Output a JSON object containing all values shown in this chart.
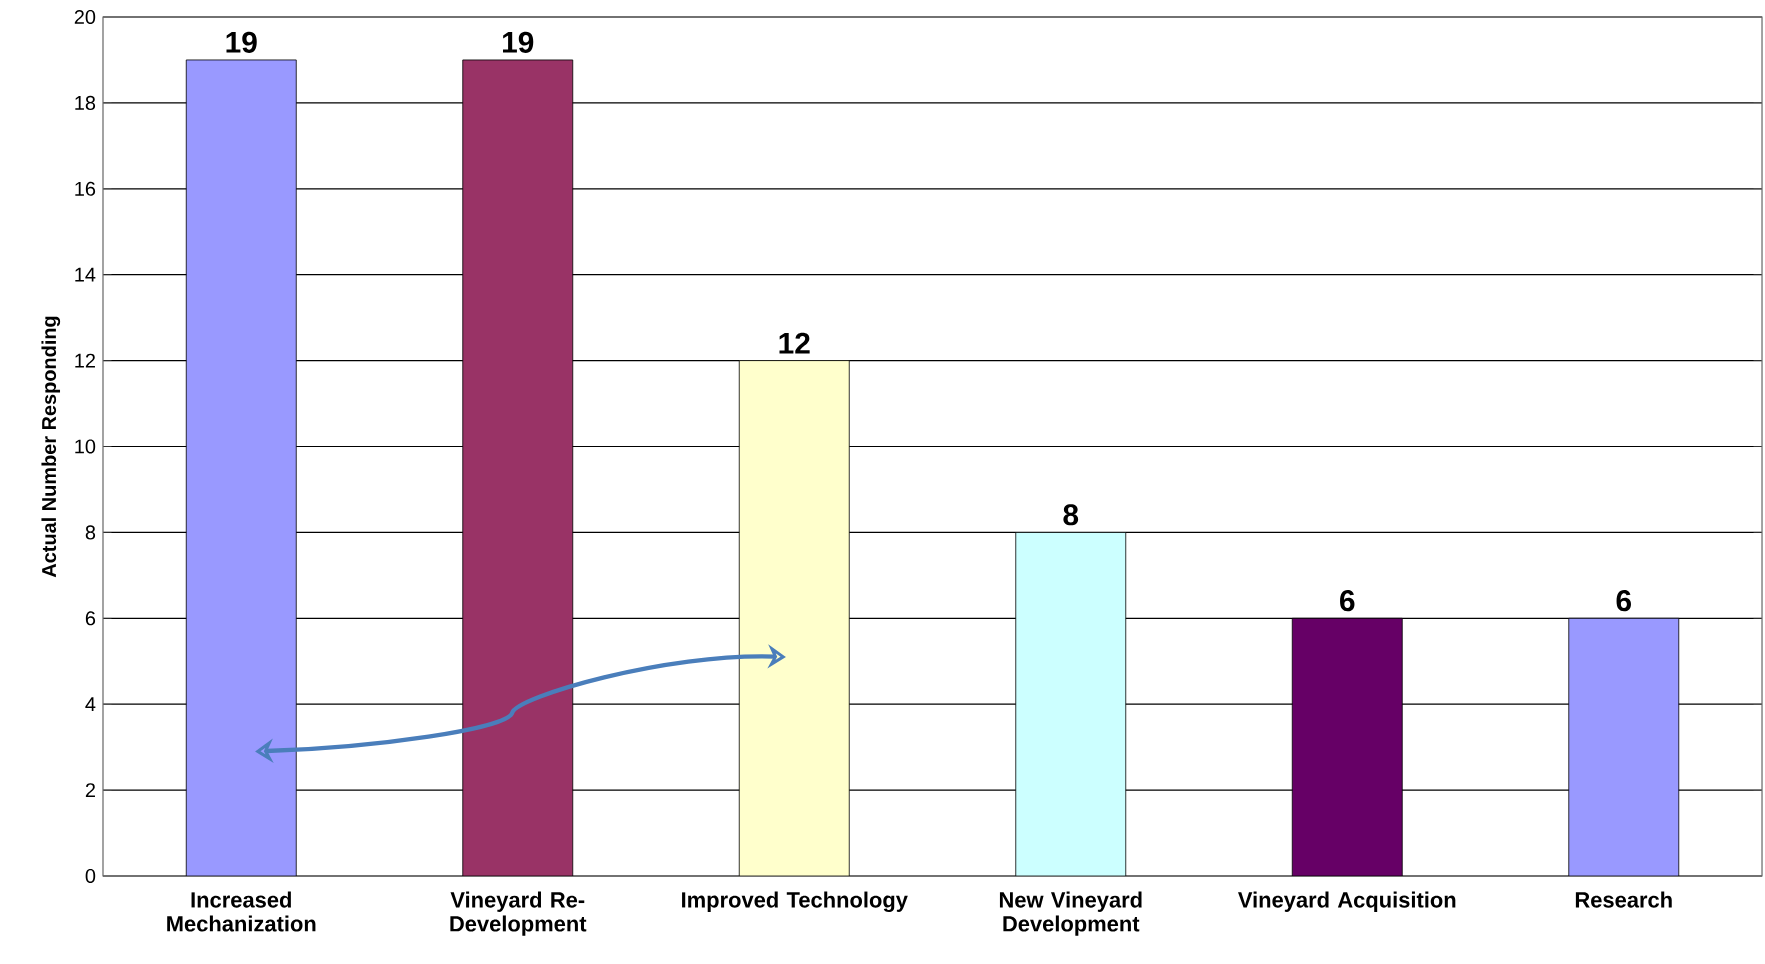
{
  "chart_data": {
    "type": "bar",
    "ylabel": "Actual Number Responding",
    "categories": [
      "Increased Mechanization",
      "Vineyard Re-Development",
      "Improved Technology",
      "New Vineyard Development",
      "Vineyard Acquisition",
      "Research"
    ],
    "values": [
      19,
      19,
      12,
      8,
      6,
      6
    ],
    "colors": [
      "#9999ff",
      "#993366",
      "#ffffcc",
      "#ccffff",
      "#660066",
      "#9999ff"
    ],
    "ylim": [
      0,
      20
    ],
    "yticks": [
      0,
      2,
      4,
      6,
      8,
      10,
      12,
      14,
      16,
      18,
      20
    ],
    "grid": "y",
    "data_labels": true
  }
}
